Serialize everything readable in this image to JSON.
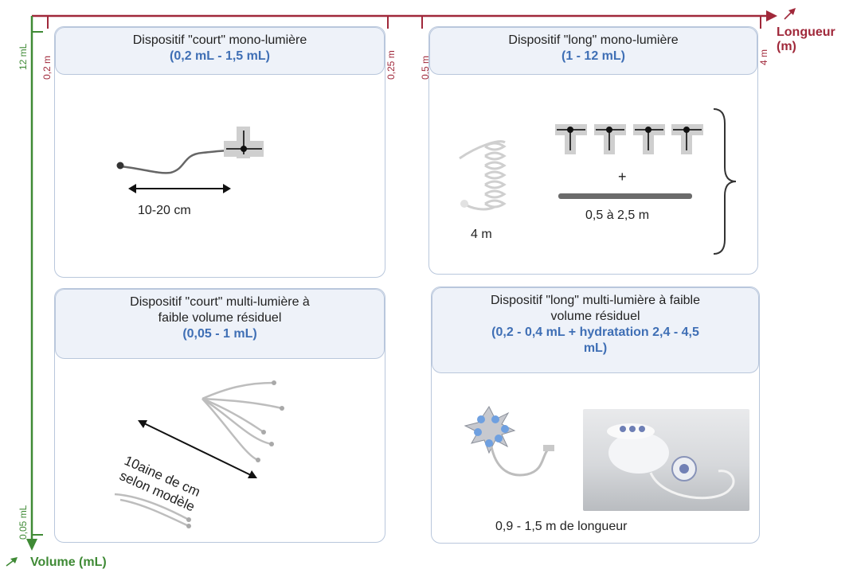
{
  "axes": {
    "x_label_line1": "Longueur",
    "x_label_line2": "(m)",
    "y_label": "Volume (mL)",
    "x_ticks": [
      "0,2 m",
      "0,25 m",
      "0,5 m",
      "4 m"
    ],
    "y_ticks": [
      "12 mL",
      "0,05 mL"
    ],
    "x_color": "#a0283a",
    "y_color": "#3f8a35"
  },
  "panels": {
    "short_mono": {
      "title": "Dispositif \"court\" mono-lumière",
      "volume": "(0,2 mL - 1,5 mL)",
      "measure": "10-20 cm"
    },
    "long_mono": {
      "title": "Dispositif \"long\" mono-lumière",
      "volume": "(1 - 12 mL)",
      "coil_length": "4 m",
      "plus": "+",
      "line_length": "0,5 à 2,5 m"
    },
    "short_multi": {
      "title_line1": "Dispositif \"court\" multi-lumière à",
      "title_line2": "faible volume résiduel",
      "volume": "(0,05 - 1 mL)",
      "measure_line1": "10aine de cm",
      "measure_line2": "selon modèle"
    },
    "long_multi": {
      "title_line1": "Dispositif \"long\" multi-lumière à faible",
      "title_line2": "volume résiduel",
      "volume_line1": "(0,2 - 0,4 mL + hydratation 2,4 - 4,5",
      "volume_line2": "mL)",
      "length_caption": "0,9 - 1,5 m de longueur"
    }
  },
  "colors": {
    "panel_border": "#b9c7dc",
    "header_bg": "#eef2f9",
    "volume_text": "#3f6fb5"
  }
}
